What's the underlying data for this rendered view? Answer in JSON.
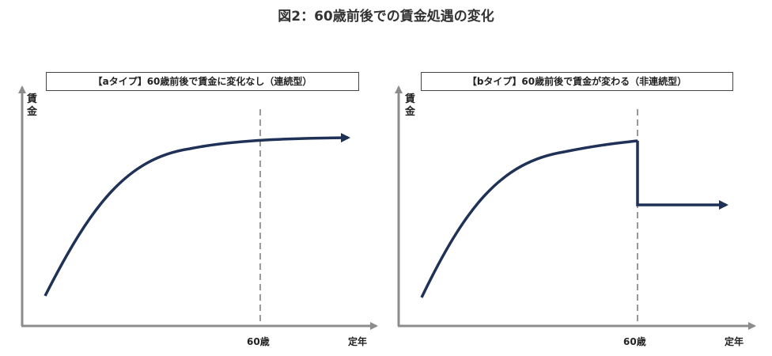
{
  "title": "図2：60歳前後での賃金処遇の変化",
  "colors": {
    "curve": "#1f3156",
    "axis": "#8c8c8c",
    "dashed": "#999999"
  },
  "panels": [
    {
      "caption": "【aタイプ】60歳前後で賃金に変化なし（連続型）",
      "y_axis_label": "賃金",
      "x_axis_label": "定年",
      "x_marker_label": "60歳",
      "shape": "continuous"
    },
    {
      "caption": "【bタイプ】60歳前後で賃金が変わる（非連続型）",
      "y_axis_label": "賃金",
      "x_axis_label": "定年",
      "x_marker_label": "60歳",
      "shape": "step-down"
    }
  ]
}
